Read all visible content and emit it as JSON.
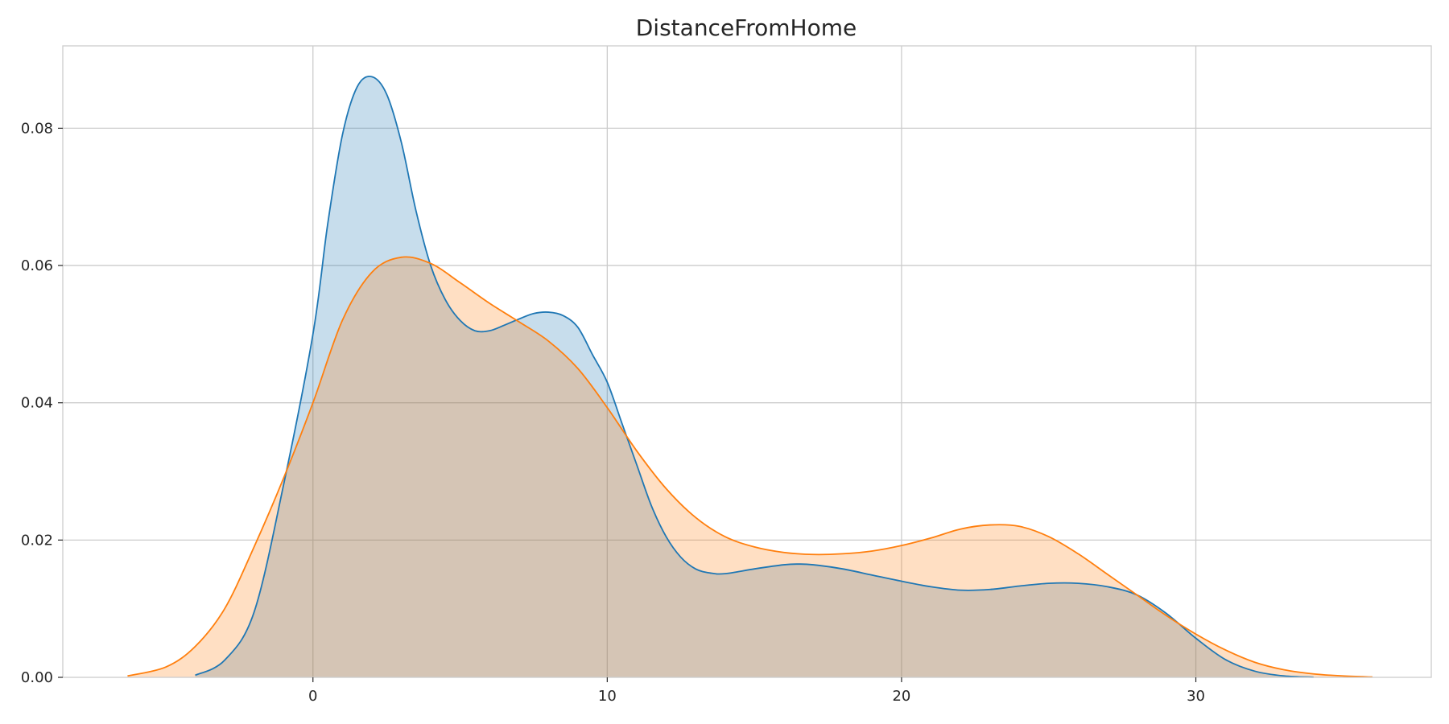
{
  "chart_data": {
    "type": "area",
    "title": "DistanceFromHome",
    "xlabel": "",
    "ylabel": "",
    "xlim": [
      -8.5,
      38
    ],
    "ylim": [
      0,
      0.092
    ],
    "x_ticks": [
      0,
      10,
      20,
      30
    ],
    "x_tick_labels": [
      "0",
      "10",
      "20",
      "30"
    ],
    "y_ticks": [
      0,
      0.02,
      0.04,
      0.06,
      0.08
    ],
    "y_tick_labels": [
      "0.00",
      "0.02",
      "0.04",
      "0.06",
      "0.08"
    ],
    "grid": true,
    "legend": null,
    "series": [
      {
        "color": "#1f77b4",
        "fill_color": "#1f77b4",
        "fill_opacity": 0.25,
        "x": [
          -4,
          -3,
          -2,
          -1,
          0,
          0.5,
          1,
          1.5,
          2,
          2.5,
          3,
          3.5,
          4,
          4.5,
          5,
          5.5,
          6,
          6.5,
          7,
          7.5,
          8,
          8.5,
          9,
          9.5,
          10,
          10.5,
          11,
          11.5,
          12,
          12.5,
          13,
          13.5,
          14,
          15,
          16,
          16.5,
          17,
          18,
          19,
          20,
          21,
          22,
          23,
          24,
          25,
          26,
          27,
          28,
          29,
          30,
          31,
          32,
          33,
          34
        ],
        "y": [
          0.0003,
          0.0025,
          0.0095,
          0.028,
          0.05,
          0.066,
          0.079,
          0.086,
          0.0875,
          0.085,
          0.078,
          0.068,
          0.06,
          0.055,
          0.052,
          0.0505,
          0.0505,
          0.0513,
          0.0522,
          0.053,
          0.0532,
          0.0527,
          0.051,
          0.047,
          0.043,
          0.037,
          0.031,
          0.025,
          0.0205,
          0.0175,
          0.0158,
          0.0152,
          0.0151,
          0.0158,
          0.0164,
          0.0165,
          0.0164,
          0.0158,
          0.0149,
          0.014,
          0.0132,
          0.0127,
          0.0128,
          0.0133,
          0.0137,
          0.0137,
          0.0132,
          0.012,
          0.0093,
          0.0057,
          0.0026,
          0.0009,
          0.0002,
          3e-05
        ]
      },
      {
        "color": "#ff7f0e",
        "fill_color": "#ff7f0e",
        "fill_opacity": 0.25,
        "x": [
          -6.3,
          -5,
          -4,
          -3,
          -2,
          -1,
          0,
          1,
          2,
          3,
          4,
          5,
          6,
          7,
          8,
          9,
          10,
          11,
          12,
          13,
          14,
          15,
          16,
          17,
          18,
          19,
          20,
          21,
          22,
          23,
          24,
          25,
          26,
          27,
          28,
          29,
          30,
          31,
          32,
          33,
          34,
          35,
          36
        ],
        "y": [
          0.0002,
          0.0015,
          0.0045,
          0.01,
          0.019,
          0.029,
          0.04,
          0.052,
          0.059,
          0.0612,
          0.0603,
          0.0575,
          0.0545,
          0.0518,
          0.049,
          0.045,
          0.0393,
          0.033,
          0.0275,
          0.0233,
          0.0205,
          0.019,
          0.0182,
          0.0179,
          0.018,
          0.0184,
          0.0192,
          0.0203,
          0.0216,
          0.0222,
          0.022,
          0.0205,
          0.018,
          0.015,
          0.012,
          0.009,
          0.0063,
          0.004,
          0.0022,
          0.0011,
          0.0005,
          0.0002,
          5e-05
        ]
      }
    ]
  }
}
